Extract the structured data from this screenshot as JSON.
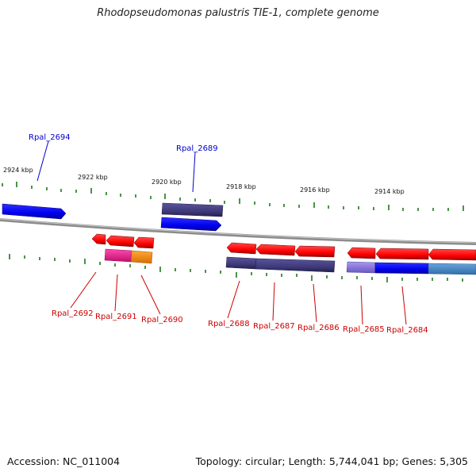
{
  "title": "Rhodopseudomonas palustris TIE-1, complete genome",
  "footer": {
    "accession": "Accession: NC_011004",
    "summary": "Topology: circular; Length: 5,744,041 bp; Genes: 5,305"
  },
  "colors": {
    "forward_gene": "#0000ff",
    "reverse_gene": "#ff0000",
    "navy_feature": "#3f3a7a",
    "magenta_feature": "#ee1b8c",
    "orange_feature": "#ff8c00",
    "lavender_feature": "#8f7be0",
    "steel_feature": "#4b8cc8",
    "tick": "#1a7a1a",
    "backbone": "#888888"
  },
  "scale_labels": [
    "2924 kbp",
    "2922 kbp",
    "2920 kbp",
    "2918 kbp",
    "2916 kbp",
    "2914 kbp"
  ],
  "genes": [
    {
      "id": "Rpal_2694",
      "strand": "+"
    },
    {
      "id": "Rpal_2689",
      "strand": "+"
    },
    {
      "id": "Rpal_2692",
      "strand": "-"
    },
    {
      "id": "Rpal_2691",
      "strand": "-"
    },
    {
      "id": "Rpal_2690",
      "strand": "-"
    },
    {
      "id": "Rpal_2688",
      "strand": "-"
    },
    {
      "id": "Rpal_2687",
      "strand": "-"
    },
    {
      "id": "Rpal_2686",
      "strand": "-"
    },
    {
      "id": "Rpal_2685",
      "strand": "-"
    },
    {
      "id": "Rpal_2684",
      "strand": "-"
    }
  ]
}
